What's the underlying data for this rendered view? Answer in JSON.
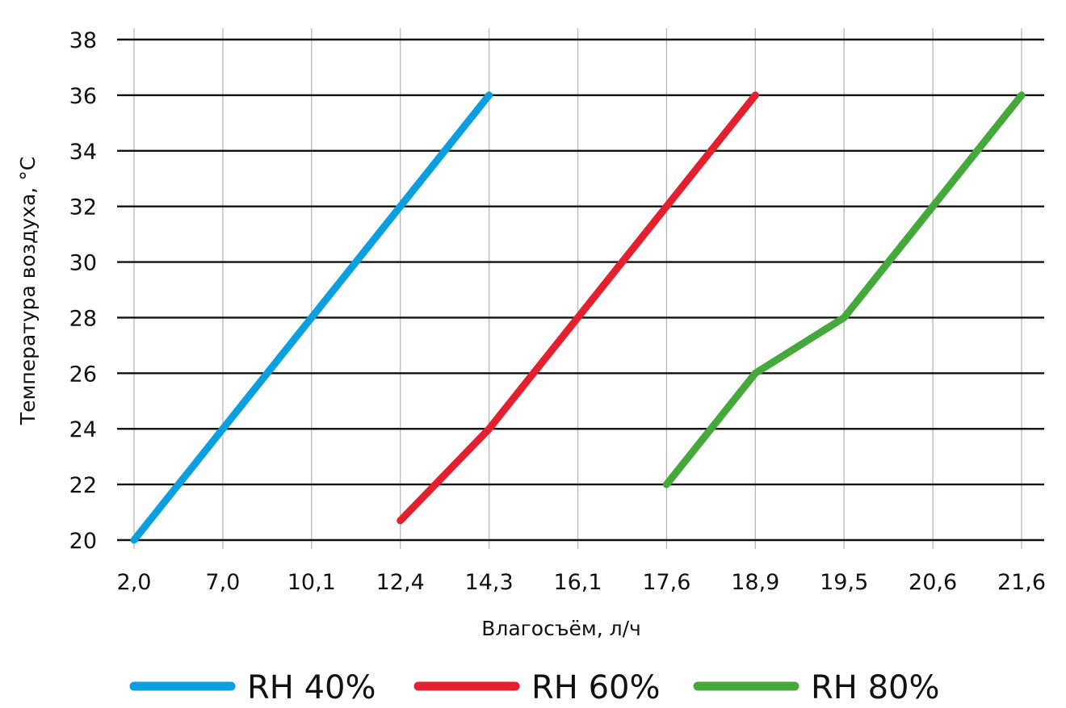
{
  "chart_data": {
    "type": "line",
    "title": "",
    "xlabel": "Влагосъём, л/ч",
    "ylabel": "Температура воздуха, °C",
    "x_categories": [
      "2,0",
      "7,0",
      "10,1",
      "12,4",
      "14,3",
      "16,1",
      "17,6",
      "18,9",
      "19,5",
      "20,6",
      "21,6"
    ],
    "yticks": [
      "20",
      "22",
      "24",
      "26",
      "28",
      "30",
      "32",
      "34",
      "36",
      "38"
    ],
    "ylim": [
      20,
      38
    ],
    "grid": true,
    "legend_position": "bottom",
    "series": [
      {
        "name": "RH 40%",
        "color": "#0a9fdf",
        "points": [
          [
            0,
            20
          ],
          [
            1,
            24
          ],
          [
            2,
            28
          ],
          [
            3,
            32
          ],
          [
            4,
            36
          ]
        ]
      },
      {
        "name": "RH 60%",
        "color": "#e4202e",
        "points": [
          [
            3,
            20.7
          ],
          [
            4,
            24
          ],
          [
            5,
            28
          ],
          [
            6,
            32
          ],
          [
            7,
            36
          ]
        ]
      },
      {
        "name": "RH 80%",
        "color": "#44a83a",
        "points": [
          [
            6,
            22
          ],
          [
            7,
            26
          ],
          [
            8,
            28
          ],
          [
            9,
            32
          ],
          [
            10,
            36
          ]
        ]
      }
    ]
  }
}
